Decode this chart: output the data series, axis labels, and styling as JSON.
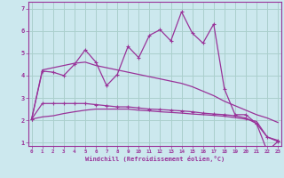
{
  "xlabel": "Windchill (Refroidissement éolien,°C)",
  "background_color": "#cce8ee",
  "grid_color": "#aacfcc",
  "line_color": "#993399",
  "x_values": [
    0,
    1,
    2,
    3,
    4,
    5,
    6,
    7,
    8,
    9,
    10,
    11,
    12,
    13,
    14,
    15,
    16,
    17,
    18,
    19,
    20,
    21,
    22,
    23
  ],
  "line1": [
    2.05,
    4.2,
    4.15,
    4.0,
    4.5,
    5.15,
    4.6,
    3.55,
    4.05,
    5.3,
    4.8,
    5.8,
    6.05,
    5.55,
    6.85,
    5.9,
    5.45,
    6.3,
    3.4,
    2.25,
    2.25,
    1.85,
    1.25,
    1.1
  ],
  "line2": [
    2.05,
    4.25,
    4.35,
    4.45,
    4.55,
    4.6,
    4.45,
    4.35,
    4.25,
    4.15,
    4.05,
    3.95,
    3.85,
    3.75,
    3.65,
    3.5,
    3.3,
    3.1,
    2.85,
    2.65,
    2.45,
    2.25,
    2.1,
    1.9
  ],
  "line3": [
    2.05,
    2.75,
    2.75,
    2.75,
    2.75,
    2.75,
    2.7,
    2.65,
    2.6,
    2.6,
    2.55,
    2.5,
    2.48,
    2.45,
    2.42,
    2.38,
    2.32,
    2.28,
    2.25,
    2.2,
    2.1,
    1.85,
    0.62,
    1.05
  ],
  "line4": [
    2.05,
    2.15,
    2.2,
    2.3,
    2.38,
    2.45,
    2.5,
    2.5,
    2.5,
    2.5,
    2.45,
    2.42,
    2.38,
    2.35,
    2.32,
    2.28,
    2.25,
    2.22,
    2.18,
    2.12,
    2.05,
    1.95,
    1.25,
    1.05
  ],
  "ylim_min": 0.85,
  "ylim_max": 7.3,
  "xlim_min": -0.3,
  "xlim_max": 23.3,
  "yticks": [
    1,
    2,
    3,
    4,
    5,
    6,
    7
  ],
  "xticks": [
    0,
    1,
    2,
    3,
    4,
    5,
    6,
    7,
    8,
    9,
    10,
    11,
    12,
    13,
    14,
    15,
    16,
    17,
    18,
    19,
    20,
    21,
    22,
    23
  ]
}
